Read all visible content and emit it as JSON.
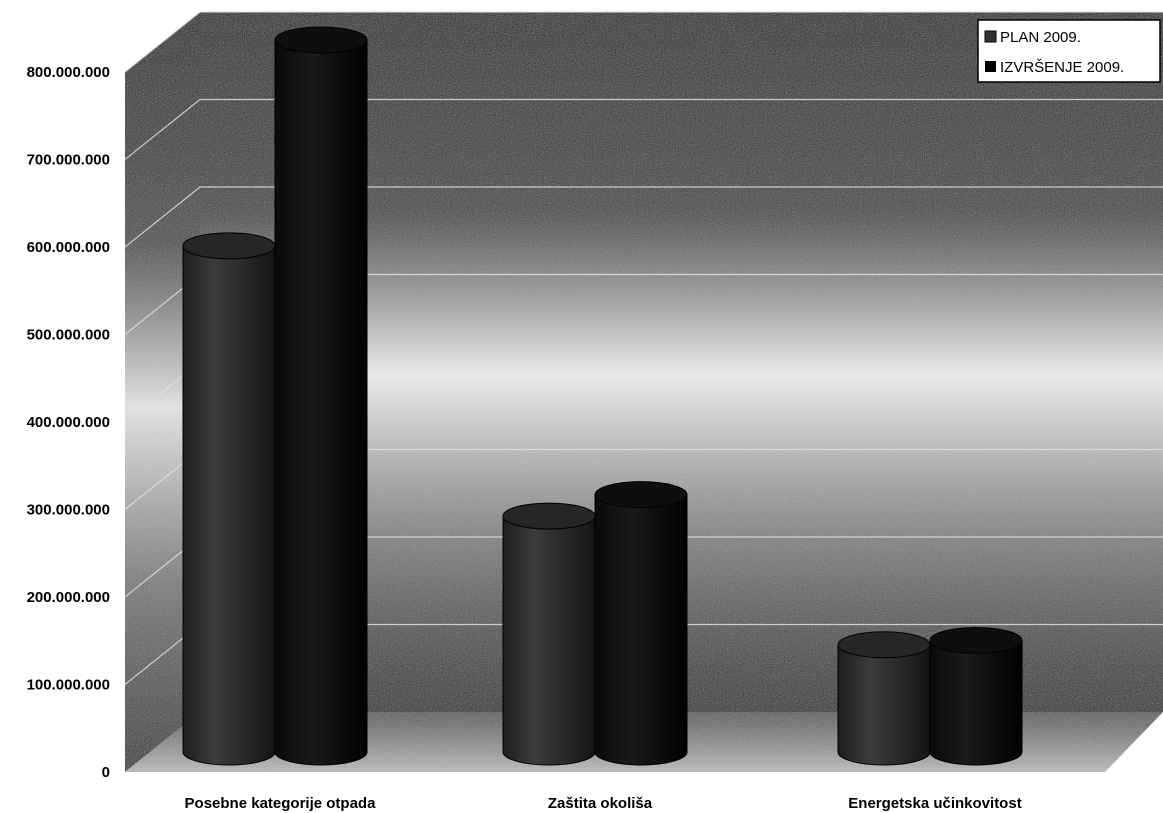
{
  "chart_data": {
    "type": "bar",
    "title": "",
    "xlabel": "",
    "ylabel": "",
    "categories": [
      "Posebne kategorije otpada",
      "Zaštita okoliša",
      "Energetska učinkovitost"
    ],
    "series": [
      {
        "name": "PLAN 2009.",
        "values": [
          590000000,
          275000000,
          125000000
        ]
      },
      {
        "name": "IZVRŠENJE 2009.",
        "values": [
          830000000,
          300000000,
          130000000
        ]
      }
    ],
    "ylim": [
      0,
      800000000
    ],
    "yticks": [
      "0",
      "100.000.000",
      "200.000.000",
      "300.000.000",
      "400.000.000",
      "500.000.000",
      "600.000.000",
      "700.000.000",
      "800.000.000"
    ],
    "grid": true,
    "legend_position": "top-right",
    "colors": {
      "plan": "#2b2b2b",
      "izvrsenje": "#050505",
      "wall_dark": "#1a1a1a",
      "wall_light": "#dcdcdc"
    }
  }
}
